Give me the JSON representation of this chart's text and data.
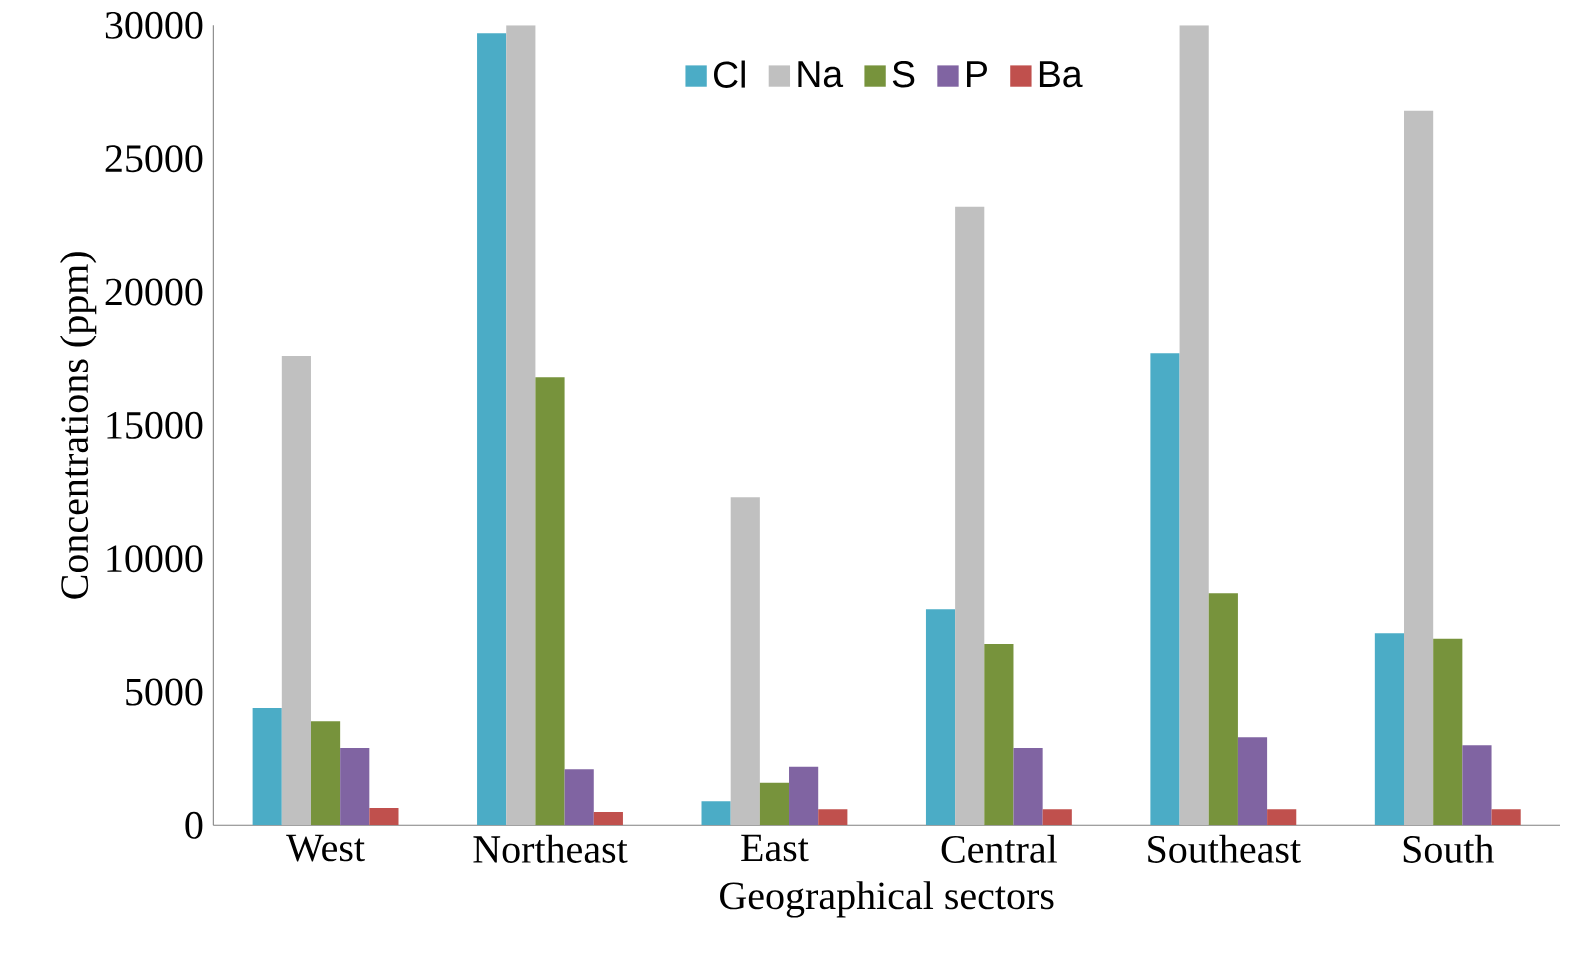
{
  "chart_data": {
    "type": "bar",
    "xlabel": "Geographical sectors",
    "ylabel": "Concentrations (ppm)",
    "categories": [
      "West",
      "Northeast",
      "East",
      "Central",
      "Southeast",
      "South"
    ],
    "series": [
      {
        "name": "Cl",
        "color": "#4bacc6",
        "values": [
          4400,
          29700,
          900,
          8100,
          17700,
          7200
        ]
      },
      {
        "name": "Na",
        "color": "#c0c0c0",
        "values": [
          17600,
          30000,
          12300,
          23200,
          30000,
          26800
        ]
      },
      {
        "name": "S",
        "color": "#77933c",
        "values": [
          3900,
          16800,
          1600,
          6800,
          8700,
          7000
        ]
      },
      {
        "name": "P",
        "color": "#8064a2",
        "values": [
          2900,
          2100,
          2200,
          2900,
          3300,
          3000
        ]
      },
      {
        "name": "Ba",
        "color": "#c0504d",
        "values": [
          650,
          500,
          600,
          600,
          600,
          600
        ]
      }
    ],
    "ylim": [
      0,
      30000
    ],
    "yticks": [
      0,
      5000,
      10000,
      15000,
      20000,
      25000,
      30000
    ],
    "grid": false,
    "legend": "top"
  }
}
